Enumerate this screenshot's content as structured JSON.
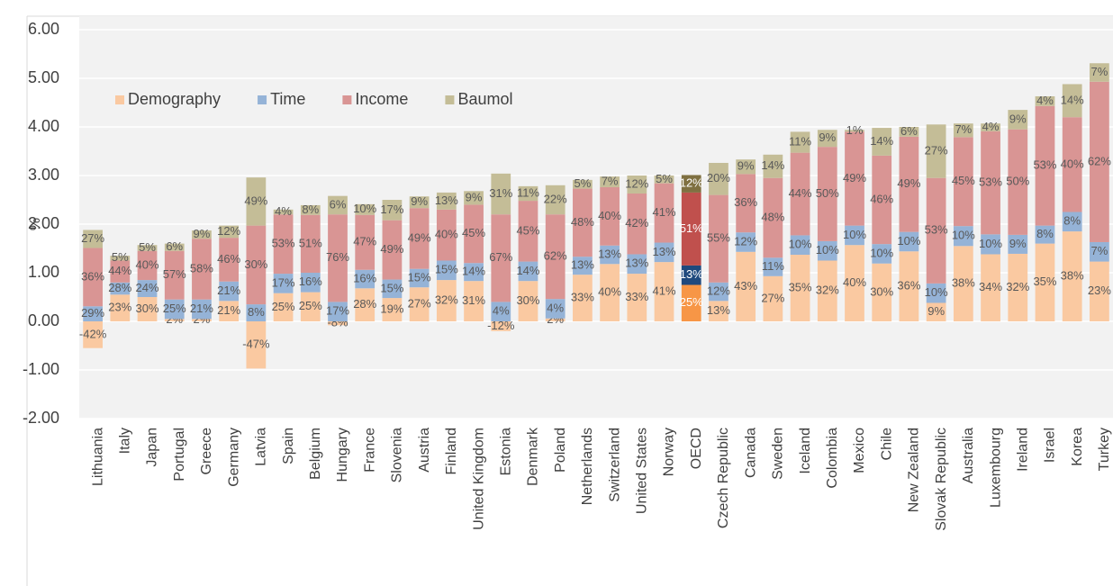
{
  "chart_data": {
    "type": "stacked-bar",
    "y_label": "%",
    "categories": [
      "Lithuania",
      "Italy",
      "Japan",
      "Portugal",
      "Greece",
      "Germany",
      "Latvia",
      "Spain",
      "Belgium",
      "Hungary",
      "France",
      "Slovenia",
      "Austria",
      "Finland",
      "United Kingdom",
      "Estonia",
      "Denmark",
      "Poland",
      "Netherlands",
      "Switzerland",
      "United States",
      "Norway",
      "OECD",
      "Czech Republic",
      "Canada",
      "Sweden",
      "Iceland",
      "Colombia",
      "Mexico",
      "Chile",
      "New Zealand",
      "Slovak Republic",
      "Australia",
      "Luxembourg",
      "Ireland",
      "Israel",
      "Korea",
      "Turkey"
    ],
    "highlight_category": 22,
    "series": [
      {
        "name": "Demography",
        "color": "#fac9a1",
        "highlight_color": "#f79646",
        "values": [
          -0.55,
          0.55,
          0.5,
          0.05,
          0.05,
          0.42,
          -0.97,
          0.58,
          0.6,
          -0.08,
          0.68,
          0.48,
          0.7,
          0.85,
          0.83,
          -0.2,
          0.83,
          0.06,
          0.96,
          1.18,
          0.98,
          1.22,
          0.75,
          0.42,
          1.43,
          0.93,
          1.37,
          1.25,
          1.57,
          1.19,
          1.44,
          0.38,
          1.55,
          1.38,
          1.39,
          1.6,
          1.85,
          1.23
        ],
        "value_labels": [
          "-42%",
          "23%",
          "30%",
          "2%",
          "2%",
          "21%",
          "-47%",
          "25%",
          "25%",
          "-8%",
          "28%",
          "19%",
          "27%",
          "32%",
          "31%",
          "-12%",
          "30%",
          "2%",
          "33%",
          "40%",
          "33%",
          "41%",
          "25%",
          "13%",
          "43%",
          "27%",
          "35%",
          "32%",
          "40%",
          "30%",
          "36%",
          "9%",
          "38%",
          "34%",
          "32%",
          "35%",
          "38%",
          "23%"
        ]
      },
      {
        "name": "Time",
        "color": "#95b3d7",
        "highlight_color": "#1f497d",
        "values": [
          0.31,
          0.25,
          0.35,
          0.4,
          0.4,
          0.4,
          0.35,
          0.4,
          0.4,
          0.4,
          0.38,
          0.38,
          0.38,
          0.4,
          0.37,
          0.4,
          0.4,
          0.4,
          0.37,
          0.38,
          0.4,
          0.4,
          0.4,
          0.38,
          0.4,
          0.38,
          0.4,
          0.4,
          0.4,
          0.4,
          0.4,
          0.4,
          0.41,
          0.41,
          0.39,
          0.37,
          0.4,
          0.4
        ],
        "value_labels": [
          "29%",
          "28%",
          "24%",
          "25%",
          "21%",
          "21%",
          "8%",
          "17%",
          "16%",
          "17%",
          "16%",
          "15%",
          "15%",
          "15%",
          "14%",
          "4%",
          "14%",
          "4%",
          "13%",
          "13%",
          "13%",
          "13%",
          "13%",
          "12%",
          "12%",
          "11%",
          "10%",
          "10%",
          "10%",
          "10%",
          "10%",
          "10%",
          "10%",
          "10%",
          "9%",
          "8%",
          "8%",
          "7%"
        ]
      },
      {
        "name": "Income",
        "color": "#d99594",
        "highlight_color": "#c0504d",
        "values": [
          1.2,
          0.45,
          0.6,
          1.0,
          1.25,
          0.9,
          1.62,
          1.22,
          1.19,
          1.8,
          1.13,
          1.22,
          1.25,
          1.05,
          1.2,
          1.8,
          1.25,
          1.74,
          1.4,
          1.2,
          1.25,
          1.22,
          1.5,
          1.8,
          1.2,
          1.64,
          1.7,
          1.94,
          1.93,
          1.82,
          1.96,
          2.17,
          1.83,
          2.12,
          2.17,
          2.46,
          1.95,
          3.3
        ],
        "value_labels": [
          "36%",
          "44%",
          "40%",
          "57%",
          "58%",
          "46%",
          "30%",
          "53%",
          "51%",
          "76%",
          "47%",
          "49%",
          "49%",
          "40%",
          "45%",
          "67%",
          "45%",
          "62%",
          "48%",
          "40%",
          "42%",
          "41%",
          "51%",
          "55%",
          "36%",
          "48%",
          "44%",
          "50%",
          "49%",
          "46%",
          "49%",
          "53%",
          "45%",
          "53%",
          "50%",
          "53%",
          "40%",
          "62%"
        ]
      },
      {
        "name": "Baumol",
        "color": "#c4bd97",
        "highlight_color": "#7f7041",
        "values": [
          0.37,
          0.1,
          0.12,
          0.15,
          0.17,
          0.25,
          0.99,
          0.1,
          0.2,
          0.38,
          0.22,
          0.42,
          0.24,
          0.35,
          0.28,
          0.84,
          0.3,
          0.6,
          0.18,
          0.22,
          0.37,
          0.16,
          0.36,
          0.66,
          0.3,
          0.48,
          0.43,
          0.35,
          0.04,
          0.57,
          0.2,
          1.1,
          0.28,
          0.16,
          0.4,
          0.2,
          0.68,
          0.38
        ],
        "value_labels": [
          "27%",
          "5%",
          "5%",
          "6%",
          "9%",
          "12%",
          "49%",
          "4%",
          "8%",
          "6%",
          "10%",
          "17%",
          "9%",
          "13%",
          "9%",
          "31%",
          "11%",
          "22%",
          "5%",
          "7%",
          "12%",
          "5%",
          "12%",
          "20%",
          "9%",
          "14%",
          "11%",
          "9%",
          "1%",
          "14%",
          "6%",
          "27%",
          "7%",
          "4%",
          "9%",
          "4%",
          "14%",
          "7%"
        ]
      }
    ],
    "ylim": [
      -2,
      6
    ],
    "yticks": [
      {
        "value": -2,
        "label": "-2.00"
      },
      {
        "value": -1,
        "label": "-1.00"
      },
      {
        "value": 0,
        "label": "0.00"
      },
      {
        "value": 1,
        "label": "1.00"
      },
      {
        "value": 2,
        "label": "2.00"
      },
      {
        "value": 3,
        "label": "3.00"
      },
      {
        "value": 4,
        "label": "4.00"
      },
      {
        "value": 5,
        "label": "5.00"
      },
      {
        "value": 6,
        "label": "6.00"
      }
    ],
    "grid": true,
    "legend": "top-left"
  }
}
